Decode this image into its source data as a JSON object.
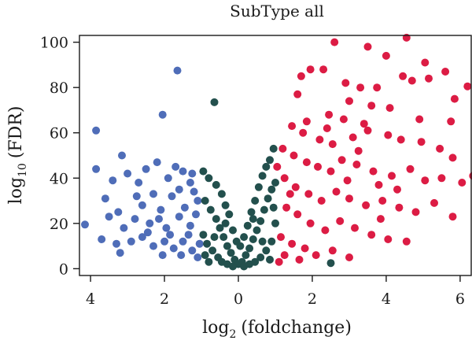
{
  "chart_data": {
    "type": "scatter",
    "title": "SubType all",
    "xlabel_base": "log",
    "xlabel_sub": "2",
    "xlabel_rest": "(foldchange)",
    "ylabel_base": "log",
    "ylabel_sub": "10",
    "ylabel_rest": "(FDR)",
    "xlim": [
      -4.3,
      6.3
    ],
    "ylim": [
      -3,
      103
    ],
    "x_ticks": [
      {
        "value": -4,
        "label": "4"
      },
      {
        "value": -2,
        "label": "2"
      },
      {
        "value": 0,
        "label": "0"
      },
      {
        "value": 2,
        "label": "2"
      },
      {
        "value": 4,
        "label": "4"
      },
      {
        "value": 6,
        "label": "6"
      }
    ],
    "y_ticks": [
      {
        "value": 0,
        "label": "0"
      },
      {
        "value": 20,
        "label": "20"
      },
      {
        "value": 40,
        "label": "40"
      },
      {
        "value": 60,
        "label": "60"
      },
      {
        "value": 80,
        "label": "80"
      },
      {
        "value": 100,
        "label": "100"
      }
    ],
    "colors": {
      "down": "#4f6db8",
      "not_significant": "#23504d",
      "up": "#dc1c44"
    },
    "series": [
      {
        "group": "down",
        "points": [
          [
            -3.85,
            61
          ],
          [
            -3.15,
            50
          ],
          [
            -2.05,
            68
          ],
          [
            -1.65,
            87.5
          ],
          [
            -4.15,
            19.5
          ],
          [
            -3.6,
            31
          ],
          [
            -3.4,
            39
          ],
          [
            -3.0,
            42
          ],
          [
            -2.7,
            38
          ],
          [
            -2.5,
            44
          ],
          [
            -2.2,
            47
          ],
          [
            -1.9,
            40
          ],
          [
            -1.7,
            45
          ],
          [
            -1.5,
            43
          ],
          [
            -1.3,
            38
          ],
          [
            -1.1,
            30
          ],
          [
            -1.2,
            34
          ],
          [
            -3.25,
            25
          ],
          [
            -3.1,
            18
          ],
          [
            -2.8,
            22
          ],
          [
            -2.6,
            28
          ],
          [
            -2.4,
            20
          ],
          [
            -2.3,
            33
          ],
          [
            -2.1,
            26
          ],
          [
            -1.95,
            18
          ],
          [
            -1.8,
            32
          ],
          [
            -1.6,
            23
          ],
          [
            -1.45,
            27
          ],
          [
            -1.3,
            19
          ],
          [
            -1.15,
            24
          ],
          [
            -2.9,
            12
          ],
          [
            -2.6,
            14
          ],
          [
            -2.3,
            10
          ],
          [
            -2.0,
            12
          ],
          [
            -1.75,
            9
          ],
          [
            -1.5,
            12
          ],
          [
            -1.25,
            8
          ],
          [
            -1.05,
            11
          ],
          [
            -3.7,
            13
          ],
          [
            -3.3,
            11
          ],
          [
            -1.35,
            15
          ],
          [
            -1.85,
            15
          ],
          [
            -2.45,
            16
          ],
          [
            -3.5,
            23
          ],
          [
            -3.85,
            44
          ],
          [
            -2.75,
            32
          ],
          [
            -1.6,
            35
          ],
          [
            -1.25,
            42
          ],
          [
            -2.15,
            22
          ],
          [
            -2.05,
            6
          ],
          [
            -1.55,
            6
          ],
          [
            -1.1,
            5
          ],
          [
            -3.2,
            7
          ]
        ]
      },
      {
        "group": "not_significant",
        "points": [
          [
            -0.65,
            73.5
          ],
          [
            -0.95,
            43
          ],
          [
            -0.8,
            40
          ],
          [
            -0.6,
            37
          ],
          [
            -0.45,
            33
          ],
          [
            -0.35,
            28
          ],
          [
            -0.25,
            24
          ],
          [
            -0.15,
            17
          ],
          [
            -0.05,
            12
          ],
          [
            0.05,
            10
          ],
          [
            0.15,
            14
          ],
          [
            0.25,
            19
          ],
          [
            0.35,
            25
          ],
          [
            0.45,
            30
          ],
          [
            0.55,
            36
          ],
          [
            0.65,
            41
          ],
          [
            0.75,
            45
          ],
          [
            0.85,
            48
          ],
          [
            0.95,
            53
          ],
          [
            -0.9,
            30
          ],
          [
            -0.75,
            26
          ],
          [
            -0.6,
            22
          ],
          [
            -0.5,
            18
          ],
          [
            -0.4,
            14
          ],
          [
            -0.3,
            10
          ],
          [
            -0.2,
            7
          ],
          [
            -0.1,
            4
          ],
          [
            0.0,
            2
          ],
          [
            0.1,
            3
          ],
          [
            0.2,
            6
          ],
          [
            0.3,
            9
          ],
          [
            0.4,
            13
          ],
          [
            0.5,
            17
          ],
          [
            0.6,
            21
          ],
          [
            0.7,
            26
          ],
          [
            0.8,
            31
          ],
          [
            0.9,
            35
          ],
          [
            1.0,
            38
          ],
          [
            -0.95,
            15
          ],
          [
            -0.85,
            11
          ],
          [
            -0.7,
            8
          ],
          [
            -0.55,
            5
          ],
          [
            -0.45,
            3
          ],
          [
            -0.3,
            2
          ],
          [
            -0.15,
            1
          ],
          [
            0.15,
            1
          ],
          [
            0.3,
            2
          ],
          [
            0.45,
            3
          ],
          [
            0.6,
            5
          ],
          [
            0.75,
            8
          ],
          [
            0.9,
            12
          ],
          [
            1.0,
            20
          ],
          [
            -0.9,
            6
          ],
          [
            -0.8,
            3
          ],
          [
            0.85,
            4
          ],
          [
            0.65,
            12
          ],
          [
            -0.65,
            14
          ],
          [
            0.95,
            27
          ],
          [
            -0.35,
            20
          ],
          [
            0.4,
            22
          ],
          [
            2.5,
            2.5
          ]
        ]
      },
      {
        "group": "up",
        "points": [
          [
            4.55,
            102
          ],
          [
            2.6,
            100
          ],
          [
            3.5,
            98
          ],
          [
            4.0,
            94
          ],
          [
            5.05,
            91
          ],
          [
            1.95,
            88
          ],
          [
            2.3,
            88
          ],
          [
            4.45,
            85
          ],
          [
            4.7,
            83
          ],
          [
            5.15,
            84
          ],
          [
            5.6,
            87
          ],
          [
            1.7,
            85
          ],
          [
            1.6,
            77
          ],
          [
            2.9,
            82
          ],
          [
            3.3,
            80
          ],
          [
            3.75,
            80
          ],
          [
            6.2,
            80.5
          ],
          [
            5.85,
            75
          ],
          [
            3.0,
            74
          ],
          [
            3.6,
            72
          ],
          [
            4.1,
            71
          ],
          [
            2.45,
            68
          ],
          [
            2.85,
            66
          ],
          [
            3.4,
            64
          ],
          [
            1.45,
            63
          ],
          [
            1.75,
            60
          ],
          [
            2.2,
            57
          ],
          [
            2.55,
            55
          ],
          [
            3.1,
            58
          ],
          [
            3.5,
            61
          ],
          [
            4.05,
            59
          ],
          [
            4.4,
            57
          ],
          [
            4.95,
            56
          ],
          [
            5.45,
            53
          ],
          [
            5.8,
            49
          ],
          [
            1.2,
            53
          ],
          [
            1.5,
            50
          ],
          [
            1.85,
            47
          ],
          [
            2.15,
            45
          ],
          [
            2.5,
            43
          ],
          [
            2.8,
            48
          ],
          [
            3.2,
            46
          ],
          [
            3.65,
            43
          ],
          [
            4.15,
            41
          ],
          [
            4.65,
            44
          ],
          [
            5.05,
            39
          ],
          [
            5.5,
            40
          ],
          [
            6.05,
            38
          ],
          [
            6.35,
            41
          ],
          [
            1.25,
            40
          ],
          [
            1.55,
            36
          ],
          [
            1.9,
            33
          ],
          [
            2.25,
            30
          ],
          [
            2.65,
            34
          ],
          [
            3.0,
            31
          ],
          [
            3.45,
            28
          ],
          [
            3.9,
            30
          ],
          [
            4.35,
            27
          ],
          [
            4.8,
            25
          ],
          [
            5.3,
            29
          ],
          [
            5.8,
            23
          ],
          [
            1.3,
            27
          ],
          [
            1.6,
            24
          ],
          [
            1.95,
            20
          ],
          [
            2.35,
            17
          ],
          [
            2.75,
            21
          ],
          [
            3.15,
            18
          ],
          [
            3.6,
            15
          ],
          [
            4.05,
            13
          ],
          [
            4.55,
            12
          ],
          [
            1.15,
            14
          ],
          [
            1.45,
            11
          ],
          [
            1.8,
            9
          ],
          [
            2.1,
            6
          ],
          [
            2.55,
            8
          ],
          [
            3.0,
            5
          ],
          [
            1.25,
            6
          ],
          [
            1.65,
            4
          ],
          [
            1.1,
            3
          ],
          [
            3.85,
            22
          ],
          [
            4.3,
            35
          ],
          [
            2.4,
            62
          ],
          [
            3.25,
            52
          ],
          [
            1.85,
            65
          ],
          [
            4.9,
            66
          ],
          [
            5.75,
            65
          ],
          [
            1.4,
            33
          ],
          [
            2.95,
            39
          ],
          [
            3.8,
            37
          ],
          [
            1.05,
            45
          ]
        ]
      }
    ]
  }
}
